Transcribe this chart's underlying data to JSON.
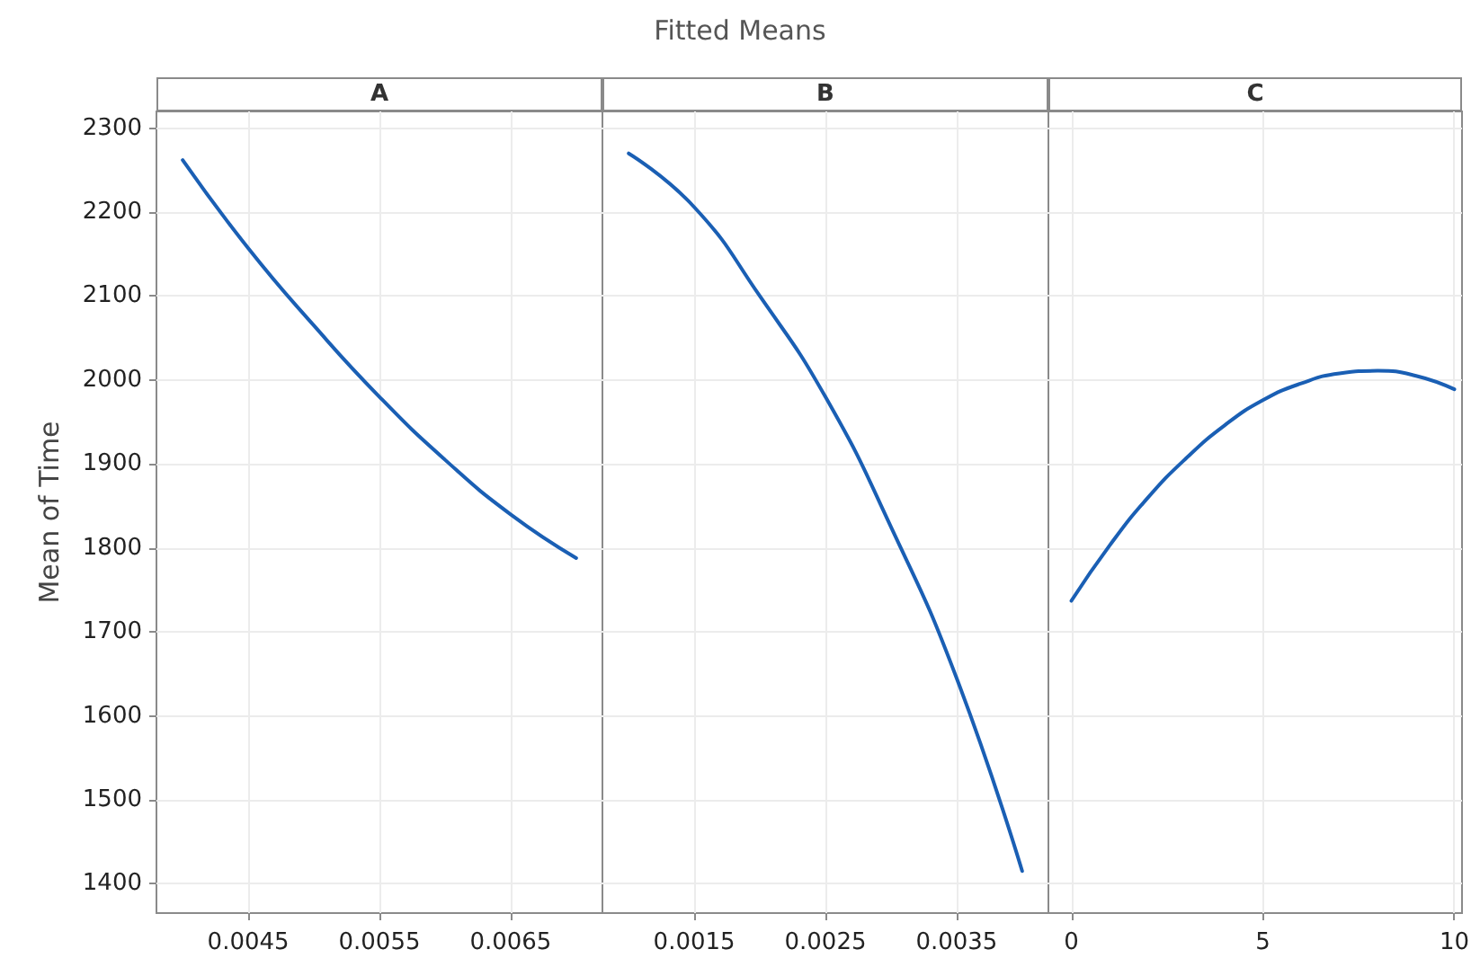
{
  "chart_data": [
    {
      "type": "line",
      "title": "A",
      "annotations": [
        "Fitted Means"
      ],
      "ylabel": "Mean of Time",
      "x": [
        0.004,
        0.0045,
        0.005,
        0.0055,
        0.006,
        0.0065,
        0.007
      ],
      "series": [
        {
          "color": "#1a5fb4",
          "values": [
            2262,
            2157,
            2065,
            1980,
            1905,
            1840,
            1788
          ]
        }
      ],
      "xlim": [
        0.0038,
        0.0072
      ],
      "xticks": [
        0.0045,
        0.0055,
        0.0065
      ],
      "ylim": [
        1365,
        2320
      ],
      "yticks": [
        1400,
        1500,
        1600,
        1700,
        1800,
        1900,
        2000,
        2100,
        2200,
        2300
      ],
      "grid": true
    },
    {
      "type": "line",
      "title": "B",
      "x": [
        0.001,
        0.0015,
        0.002,
        0.0025,
        0.003,
        0.0035,
        0.004
      ],
      "series": [
        {
          "color": "#1a5fb4",
          "values": [
            2270,
            2206,
            2100,
            1980,
            1825,
            1645,
            1415
          ]
        }
      ],
      "xlim": [
        0.0008,
        0.0042
      ],
      "xticks": [
        0.0015,
        0.0025,
        0.0035
      ],
      "ylim": [
        1365,
        2320
      ],
      "yticks": [
        1400,
        1500,
        1600,
        1700,
        1800,
        1900,
        2000,
        2100,
        2200,
        2300
      ],
      "grid": true,
      "tick_labels": "x"
    },
    {
      "type": "line",
      "title": "C",
      "x": [
        0,
        1,
        2,
        3,
        4,
        5,
        6,
        7,
        8,
        9,
        10
      ],
      "series": [
        {
          "color": "#1a5fb4",
          "values": [
            1737,
            1803,
            1860,
            1907,
            1946,
            1976,
            1996,
            2008,
            2011,
            2005,
            1989
          ]
        }
      ],
      "xlim": [
        -0.6,
        10.2
      ],
      "xticks": [
        0,
        5,
        10
      ],
      "ylim": [
        1365,
        2320
      ],
      "yticks": [
        1400,
        1500,
        1600,
        1700,
        1800,
        1900,
        2000,
        2100,
        2200,
        2300
      ],
      "grid": true,
      "tick_labels": "x"
    }
  ]
}
